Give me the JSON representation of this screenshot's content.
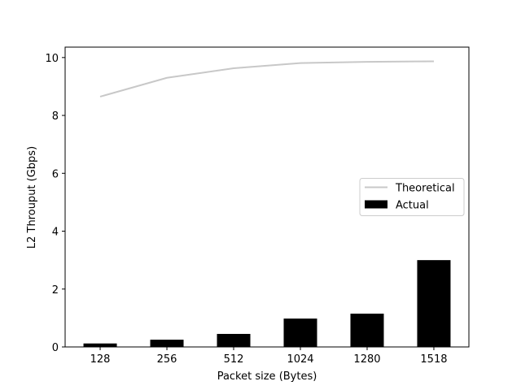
{
  "chart_data": {
    "type": "bar",
    "xlabel": "Packet size (Bytes)",
    "ylabel": "L2 Throuput (Gbps)",
    "categories": [
      "128",
      "256",
      "512",
      "1024",
      "1280",
      "1518"
    ],
    "series": [
      {
        "name": "Theoretical",
        "type": "line",
        "color": "#c8c8c8",
        "values": [
          8.65,
          9.3,
          9.63,
          9.81,
          9.85,
          9.87
        ]
      },
      {
        "name": "Actual",
        "type": "bar",
        "color": "#000000",
        "values": [
          0.12,
          0.25,
          0.45,
          0.98,
          1.15,
          3.0
        ]
      }
    ],
    "ylim": [
      0,
      10.36
    ],
    "yticks": [
      0,
      2,
      4,
      6,
      8,
      10
    ],
    "legend": "center right"
  }
}
